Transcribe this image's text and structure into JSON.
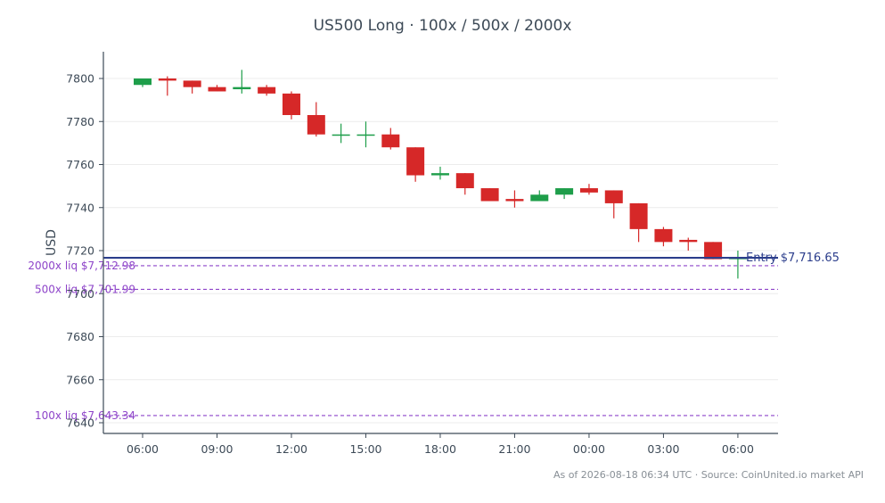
{
  "chart_data": {
    "type": "candlestick",
    "title": "US500 Long · 100x / 500x / 2000x",
    "ylabel": "USD",
    "xlabel": "",
    "ylim": [
      7635,
      7812
    ],
    "yticks": [
      7640,
      7660,
      7680,
      7700,
      7720,
      7740,
      7760,
      7780,
      7800
    ],
    "xticks": [
      {
        "label": "06:00",
        "index": 0
      },
      {
        "label": "09:00",
        "index": 3
      },
      {
        "label": "12:00",
        "index": 6
      },
      {
        "label": "15:00",
        "index": 9
      },
      {
        "label": "18:00",
        "index": 12
      },
      {
        "label": "21:00",
        "index": 15
      },
      {
        "label": "00:00",
        "index": 18
      },
      {
        "label": "03:00",
        "index": 21
      },
      {
        "label": "06:00",
        "index": 24
      }
    ],
    "grid": "horizontal",
    "candles": [
      {
        "open": 7797,
        "high": 7800,
        "low": 7796,
        "close": 7800
      },
      {
        "open": 7800,
        "high": 7801,
        "low": 7792,
        "close": 7799
      },
      {
        "open": 7799,
        "high": 7799,
        "low": 7793,
        "close": 7796
      },
      {
        "open": 7796,
        "high": 7797,
        "low": 7794,
        "close": 7794
      },
      {
        "open": 7795,
        "high": 7804,
        "low": 7793,
        "close": 7796
      },
      {
        "open": 7796,
        "high": 7797,
        "low": 7792,
        "close": 7793
      },
      {
        "open": 7793,
        "high": 7794,
        "low": 7781,
        "close": 7783
      },
      {
        "open": 7783,
        "high": 7789,
        "low": 7773,
        "close": 7774
      },
      {
        "open": 7774,
        "high": 7779,
        "low": 7770,
        "close": 7774
      },
      {
        "open": 7774,
        "high": 7780,
        "low": 7768,
        "close": 7774
      },
      {
        "open": 7774,
        "high": 7777,
        "low": 7767,
        "close": 7768
      },
      {
        "open": 7768,
        "high": 7768,
        "low": 7752,
        "close": 7755
      },
      {
        "open": 7755,
        "high": 7759,
        "low": 7753,
        "close": 7756
      },
      {
        "open": 7756,
        "high": 7756,
        "low": 7746,
        "close": 7749
      },
      {
        "open": 7749,
        "high": 7749,
        "low": 7743,
        "close": 7743
      },
      {
        "open": 7744,
        "high": 7748,
        "low": 7740,
        "close": 7743
      },
      {
        "open": 7743,
        "high": 7748,
        "low": 7743,
        "close": 7746
      },
      {
        "open": 7746,
        "high": 7749,
        "low": 7744,
        "close": 7749
      },
      {
        "open": 7749,
        "high": 7751,
        "low": 7746,
        "close": 7747
      },
      {
        "open": 7748,
        "high": 7748,
        "low": 7735,
        "close": 7742
      },
      {
        "open": 7742,
        "high": 7742,
        "low": 7724,
        "close": 7730
      },
      {
        "open": 7730,
        "high": 7731,
        "low": 7722,
        "close": 7724
      },
      {
        "open": 7725,
        "high": 7726,
        "low": 7720,
        "close": 7724
      },
      {
        "open": 7724,
        "high": 7724,
        "low": 7716,
        "close": 7716
      },
      {
        "open": 7716,
        "high": 7720,
        "low": 7707,
        "close": 7717
      }
    ],
    "entry": {
      "value": 7716.65,
      "label": "Entry $7,716.65",
      "color": "#2c3e8c"
    },
    "liquidations": [
      {
        "value": 7712.98,
        "label": "2000x liq $7,712.98"
      },
      {
        "value": 7701.99,
        "label": "500x liq $7,701.99"
      },
      {
        "value": 7643.34,
        "label": "100x liq $7,643.34"
      }
    ],
    "colors": {
      "up": "#1e9e4a",
      "down": "#d62828",
      "liq": "#8e44c9",
      "axis": "#3d4a57",
      "grid": "#ececec"
    }
  },
  "footer": "As of 2026-08-18 06:34 UTC · Source: CoinUnited.io market API"
}
